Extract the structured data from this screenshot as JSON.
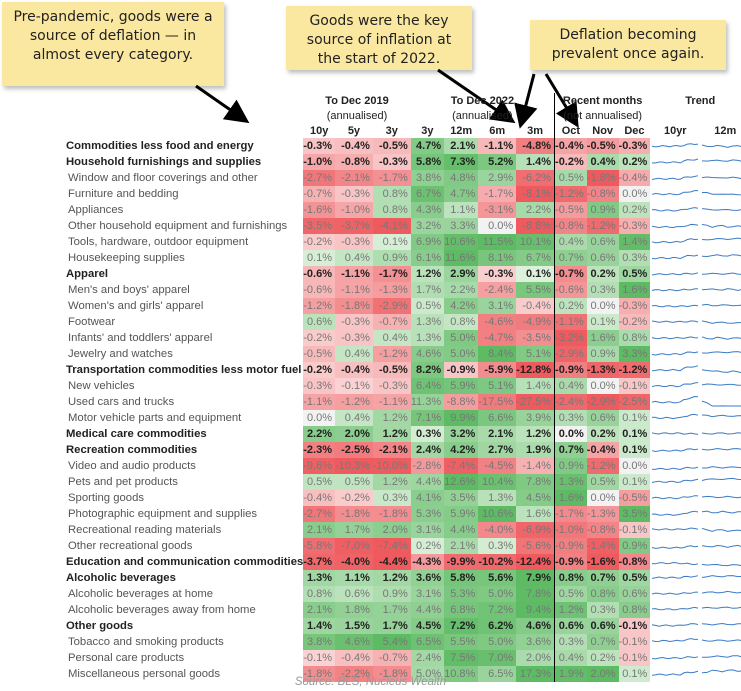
{
  "notes": {
    "note1": "Pre-pandemic, goods were a source of deflation — in almost every category.",
    "note2": "Goods were the key source of inflation at the start of 2022.",
    "note3": "Deflation becoming prevalent once again."
  },
  "chart_data": {
    "type": "table",
    "groups": [
      {
        "title": "To Dec 2019",
        "subtitle": "(annualised)"
      },
      {
        "title": "To Dec 2022",
        "subtitle": "(annualised)"
      },
      {
        "title": "Recent months",
        "subtitle": "(not annualised)"
      },
      {
        "title": "Trend",
        "subtitle": ""
      }
    ],
    "columns": [
      "10y",
      "5y",
      "3y",
      "3y",
      "12m",
      "6m",
      "3m",
      "Oct",
      "Nov",
      "Dec",
      "10yr",
      "12m"
    ],
    "colors": {
      "neg_strong": "#ee5a5e",
      "neg_light": "#f6b3b3",
      "pos_strong": "#5dbb63",
      "pos_light": "#c2e4c0",
      "trend_line": "#3b7bc6"
    },
    "rows": [
      {
        "label": "Commodities less food and energy",
        "main": true,
        "values": [
          "-0.3%",
          "-0.4%",
          "-0.5%",
          "4.7%",
          "2.1%",
          "-1.1%",
          "-4.8%",
          "-0.4%",
          "-0.5%",
          "-0.3%"
        ]
      },
      {
        "label": "Household furnishings and supplies",
        "main": true,
        "values": [
          "-1.0%",
          "-0.8%",
          "-0.3%",
          "5.8%",
          "7.3%",
          "5.2%",
          "1.4%",
          "-0.2%",
          "0.4%",
          "0.2%"
        ]
      },
      {
        "label": "Window and floor coverings and other",
        "main": false,
        "values": [
          "-2.7%",
          "-2.1%",
          "-1.7%",
          "3.8%",
          "4.8%",
          "2.9%",
          "-6.2%",
          "0.5%",
          "-1.8%",
          "-0.4%"
        ]
      },
      {
        "label": "Furniture and bedding",
        "main": false,
        "values": [
          "-0.7%",
          "-0.3%",
          "0.8%",
          "6.7%",
          "4.7%",
          "-1.7%",
          "-8.1%",
          "-1.2%",
          "-0.8%",
          "0.0%"
        ]
      },
      {
        "label": "Appliances",
        "main": false,
        "values": [
          "-1.6%",
          "-1.0%",
          "0.8%",
          "4.3%",
          "1.1%",
          "-3.1%",
          "2.2%",
          "-0.5%",
          "0.9%",
          "0.2%"
        ]
      },
      {
        "label": "Other household equipment and furnishings",
        "main": false,
        "values": [
          "-3.5%",
          "-3.7%",
          "-4.1%",
          "3.2%",
          "3.3%",
          "0.0%",
          "-8.8%",
          "-0.8%",
          "-1.2%",
          "-0.3%"
        ]
      },
      {
        "label": "Tools, hardware, outdoor equipment",
        "main": false,
        "values": [
          "-0.2%",
          "-0.3%",
          "0.1%",
          "6.9%",
          "10.6%",
          "11.5%",
          "10.1%",
          "0.4%",
          "0.6%",
          "1.4%"
        ]
      },
      {
        "label": "Housekeeping supplies",
        "main": false,
        "values": [
          "0.1%",
          "0.4%",
          "0.9%",
          "6.1%",
          "11.6%",
          "8.1%",
          "6.7%",
          "0.7%",
          "0.6%",
          "0.3%"
        ]
      },
      {
        "label": "Apparel",
        "main": true,
        "values": [
          "-0.6%",
          "-1.1%",
          "-1.7%",
          "1.2%",
          "2.9%",
          "-0.3%",
          "0.1%",
          "-0.7%",
          "0.2%",
          "0.5%"
        ]
      },
      {
        "label": "Men's and boys' apparel",
        "main": false,
        "values": [
          "-0.6%",
          "-1.1%",
          "-1.3%",
          "1.7%",
          "2.2%",
          "-2.4%",
          "5.5%",
          "-0.6%",
          "0.3%",
          "1.6%"
        ]
      },
      {
        "label": "Women's and girls' apparel",
        "main": false,
        "values": [
          "-1.2%",
          "-1.8%",
          "-2.9%",
          "0.5%",
          "4.2%",
          "3.1%",
          "-0.4%",
          "0.2%",
          "0.0%",
          "-0.3%"
        ]
      },
      {
        "label": "Footwear",
        "main": false,
        "values": [
          "0.6%",
          "-0.3%",
          "-0.7%",
          "1.3%",
          "0.8%",
          "-4.6%",
          "-4.9%",
          "-1.1%",
          "0.1%",
          "-0.2%"
        ]
      },
      {
        "label": "Infants' and toddlers' apparel",
        "main": false,
        "values": [
          "-0.2%",
          "-0.3%",
          "0.4%",
          "1.3%",
          "5.0%",
          "-4.7%",
          "-3.5%",
          "-3.2%",
          "1.6%",
          "0.8%"
        ]
      },
      {
        "label": "Jewelry and watches",
        "main": false,
        "values": [
          "-0.5%",
          "0.4%",
          "-1.2%",
          "4.6%",
          "5.0%",
          "8.4%",
          "5.1%",
          "-2.9%",
          "0.9%",
          "3.3%"
        ]
      },
      {
        "label": "Transportation commodities less motor fuel",
        "main": true,
        "values": [
          "-0.2%",
          "-0.4%",
          "-0.5%",
          "8.2%",
          "-0.9%",
          "-5.9%",
          "-12.8%",
          "-0.9%",
          "-1.3%",
          "-1.2%"
        ]
      },
      {
        "label": "New vehicles",
        "main": false,
        "values": [
          "-0.3%",
          "-0.1%",
          "-0.3%",
          "6.4%",
          "5.9%",
          "5.1%",
          "1.4%",
          "0.4%",
          "0.0%",
          "-0.1%"
        ]
      },
      {
        "label": "Used cars and trucks",
        "main": false,
        "values": [
          "-1.1%",
          "-1.2%",
          "-1.1%",
          "11.3%",
          "-8.8%",
          "-17.5%",
          "-27.5%",
          "-2.4%",
          "-2.9%",
          "-2.5%"
        ]
      },
      {
        "label": "Motor vehicle parts and equipment",
        "main": false,
        "values": [
          "0.0%",
          "0.4%",
          "1.2%",
          "7.1%",
          "9.9%",
          "6.6%",
          "3.9%",
          "0.3%",
          "0.6%",
          "0.1%"
        ]
      },
      {
        "label": "Medical care commodities",
        "main": true,
        "values": [
          "2.2%",
          "2.0%",
          "1.2%",
          "0.3%",
          "3.2%",
          "2.1%",
          "1.2%",
          "0.0%",
          "0.2%",
          "0.1%"
        ]
      },
      {
        "label": "Recreation commodities",
        "main": true,
        "values": [
          "-2.3%",
          "-2.5%",
          "-2.1%",
          "2.4%",
          "4.2%",
          "2.7%",
          "1.9%",
          "0.7%",
          "-0.4%",
          "0.1%"
        ]
      },
      {
        "label": "Video and audio products",
        "main": false,
        "values": [
          "-9.6%",
          "-10.3%",
          "-10.0%",
          "-2.8%",
          "-7.4%",
          "-4.5%",
          "-1.4%",
          "0.9%",
          "-1.2%",
          "0.0%"
        ]
      },
      {
        "label": "Pets and pet products",
        "main": false,
        "values": [
          "0.5%",
          "0.5%",
          "1.2%",
          "4.4%",
          "12.6%",
          "10.4%",
          "7.8%",
          "1.3%",
          "0.5%",
          "0.1%"
        ]
      },
      {
        "label": "Sporting goods",
        "main": false,
        "values": [
          "-0.4%",
          "-0.2%",
          "0.3%",
          "4.1%",
          "3.5%",
          "1.3%",
          "4.5%",
          "1.6%",
          "0.0%",
          "-0.5%"
        ]
      },
      {
        "label": "Photographic equipment and supplies",
        "main": false,
        "values": [
          "-2.7%",
          "-1.8%",
          "-1.8%",
          "5.3%",
          "5.9%",
          "10.6%",
          "1.6%",
          "-1.7%",
          "-1.3%",
          "3.5%"
        ]
      },
      {
        "label": "Recreational reading materials",
        "main": false,
        "values": [
          "2.1%",
          "1.7%",
          "2.0%",
          "3.1%",
          "4.4%",
          "-4.0%",
          "-6.9%",
          "-1.0%",
          "-0.8%",
          "-0.1%"
        ]
      },
      {
        "label": "Other recreational goods",
        "main": false,
        "values": [
          "-5.8%",
          "-7.0%",
          "-7.4%",
          "0.2%",
          "2.1%",
          "0.3%",
          "-5.6%",
          "-0.9%",
          "-1.4%",
          "0.9%"
        ]
      },
      {
        "label": "Education and communication commodities",
        "main": true,
        "values": [
          "-3.7%",
          "-4.0%",
          "-4.4%",
          "-4.3%",
          "-9.9%",
          "-10.2%",
          "-12.4%",
          "-0.9%",
          "-1.6%",
          "-0.8%"
        ]
      },
      {
        "label": "Alcoholic beverages",
        "main": true,
        "values": [
          "1.3%",
          "1.1%",
          "1.2%",
          "3.6%",
          "5.8%",
          "5.6%",
          "7.9%",
          "0.8%",
          "0.7%",
          "0.5%"
        ]
      },
      {
        "label": "Alcoholic beverages at home",
        "main": false,
        "values": [
          "0.8%",
          "0.6%",
          "0.9%",
          "3.1%",
          "5.3%",
          "5.0%",
          "7.8%",
          "0.5%",
          "0.8%",
          "0.6%"
        ]
      },
      {
        "label": "Alcoholic beverages away from home",
        "main": false,
        "values": [
          "2.1%",
          "1.8%",
          "1.7%",
          "4.4%",
          "6.8%",
          "7.2%",
          "9.4%",
          "1.2%",
          "0.3%",
          "0.8%"
        ]
      },
      {
        "label": "Other goods",
        "main": true,
        "values": [
          "1.4%",
          "1.5%",
          "1.7%",
          "4.5%",
          "7.2%",
          "6.2%",
          "4.6%",
          "0.6%",
          "0.6%",
          "-0.1%"
        ]
      },
      {
        "label": "Tobacco and smoking products",
        "main": false,
        "values": [
          "3.8%",
          "4.6%",
          "5.4%",
          "6.5%",
          "5.5%",
          "5.0%",
          "3.6%",
          "0.3%",
          "0.7%",
          "-0.1%"
        ]
      },
      {
        "label": "Personal care products",
        "main": false,
        "values": [
          "-0.1%",
          "-0.4%",
          "-0.7%",
          "2.4%",
          "7.5%",
          "7.0%",
          "2.0%",
          "0.4%",
          "0.2%",
          "-0.1%"
        ]
      },
      {
        "label": "Miscellaneous personal goods",
        "main": false,
        "values": [
          "-1.8%",
          "-2.2%",
          "-1.8%",
          "5.0%",
          "10.8%",
          "6.5%",
          "17.3%",
          "1.9%",
          "2.0%",
          "0.1%"
        ]
      }
    ]
  },
  "source": "Source: BLS, Nucleus Wealth"
}
